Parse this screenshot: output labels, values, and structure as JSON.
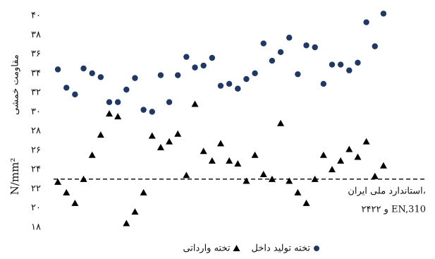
{
  "chart_data": {
    "type": "scatter",
    "y_label": "مقاومت خمشی",
    "y_unit": "N/mm²",
    "categories": [
      null,
      null,
      null,
      null,
      null,
      null,
      null,
      null,
      null,
      null,
      null,
      null,
      null,
      null,
      null,
      null,
      null,
      null,
      null,
      null,
      null,
      null,
      null,
      null,
      null,
      null,
      null,
      null,
      null,
      null,
      null,
      null,
      null,
      null,
      null,
      null,
      null,
      null,
      null
    ],
    "series": [
      {
        "name": "تخته تولید داخل",
        "color": "#1f3864",
        "marker": "circle",
        "values": [
          34.4,
          32.5,
          31.8,
          34.5,
          34.0,
          33.6,
          31.0,
          31.0,
          32.3,
          33.5,
          30.2,
          30.0,
          33.8,
          31.0,
          33.8,
          35.7,
          34.6,
          34.8,
          35.6,
          32.7,
          32.9,
          32.4,
          33.4,
          34.0,
          37.1,
          35.3,
          36.2,
          37.7,
          33.9,
          36.9,
          36.7,
          32.9,
          34.9,
          34.9,
          34.3,
          35.1,
          39.3,
          36.8,
          40.2
        ]
      },
      {
        "name": "تخته وارداتی",
        "color": "#000000",
        "marker": "triangle",
        "values": [
          22.7,
          21.6,
          20.5,
          23.0,
          25.5,
          27.6,
          29.8,
          29.5,
          18.4,
          19.6,
          21.6,
          27.5,
          26.3,
          26.9,
          27.7,
          23.4,
          30.8,
          25.9,
          24.9,
          26.7,
          24.9,
          24.6,
          22.8,
          25.5,
          23.5,
          23.0,
          28.8,
          22.8,
          21.6,
          20.5,
          23.0,
          25.5,
          24.0,
          24.9,
          26.1,
          25.3,
          26.9,
          23.3,
          24.4
        ]
      }
    ],
    "reference_line": {
      "value": 23,
      "label_lines": [
        "استاندارد ملی ایران،",
        "۲۴۲۲ و EN,310"
      ]
    },
    "ylim": [
      18,
      40
    ],
    "yticks": [
      {
        "value": 18,
        "label": "۱۸"
      },
      {
        "value": 20,
        "label": "۲۰"
      },
      {
        "value": 22,
        "label": "۲۲"
      },
      {
        "value": 24,
        "label": "۲۴"
      },
      {
        "value": 26,
        "label": "۲۶"
      },
      {
        "value": 28,
        "label": "۲۸"
      },
      {
        "value": 30,
        "label": "۳۰"
      },
      {
        "value": 32,
        "label": "۳۲"
      },
      {
        "value": 34,
        "label": "۳۴"
      },
      {
        "value": 36,
        "label": "۳۶"
      },
      {
        "value": 38,
        "label": "۳۸"
      },
      {
        "value": 40,
        "label": "۴۰"
      }
    ]
  }
}
